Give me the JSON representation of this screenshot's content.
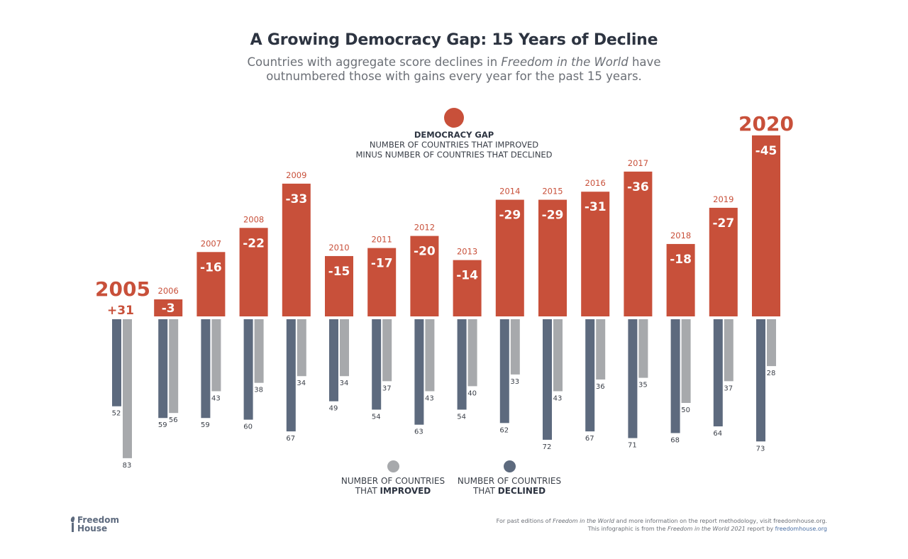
{
  "header": {
    "title": "A Growing Democracy Gap: 15 Years of Decline",
    "subtitle_pre": "Countries with aggregate score declines in ",
    "subtitle_italic": "Freedom in the World",
    "subtitle_post": " have",
    "subtitle_line2": "outnumbered those with gains every year for the past 15 years."
  },
  "gap_legend": {
    "title": "DEMOCRACY GAP",
    "line1": "NUMBER OF COUNTRIES THAT IMPROVED",
    "line2": "MINUS NUMBER OF COUNTRIES THAT DECLINED"
  },
  "legend": {
    "improved_line1": "NUMBER OF COUNTRIES",
    "improved_pre": "THAT ",
    "improved_bold": "IMPROVED",
    "declined_line1": "NUMBER OF COUNTRIES",
    "declined_pre": "THAT ",
    "declined_bold": "DECLINED"
  },
  "colors": {
    "gap": "#c8503a",
    "declined": "#5d6a7e",
    "improved": "#a7a9ac",
    "year_label": "#c8503a"
  },
  "logo": {
    "line1": "Freedom",
    "line2": "House"
  },
  "footer": {
    "l1_pre": "For past editions of ",
    "l1_italic": "Freedom in the World",
    "l1_post": " and more information on the report methodology, visit freedomhouse.org.",
    "l2_pre": "This infographic is from the ",
    "l2_italic": "Freedom in the World 2021",
    "l2_mid": " report by ",
    "l2_link": "freedomhouse.org"
  },
  "chart_data": {
    "type": "bar",
    "title": "A Growing Democracy Gap: 15 Years of Decline",
    "categories": [
      "2005",
      "2006",
      "2007",
      "2008",
      "2009",
      "2010",
      "2011",
      "2012",
      "2013",
      "2014",
      "2015",
      "2016",
      "2017",
      "2018",
      "2019",
      "2020"
    ],
    "highlight_years": [
      "2005",
      "2020"
    ],
    "series": [
      {
        "name": "Democracy Gap",
        "values": [
          31,
          -3,
          -16,
          -22,
          -33,
          -15,
          -17,
          -20,
          -14,
          -29,
          -29,
          -31,
          -36,
          -18,
          -27,
          -45
        ],
        "labels": [
          "+31",
          "-3",
          "-16",
          "-22",
          "-33",
          "-15",
          "-17",
          "-20",
          "-14",
          "-29",
          "-29",
          "-31",
          "-36",
          "-18",
          "-27",
          "-45"
        ]
      },
      {
        "name": "Number of countries that declined",
        "values": [
          52,
          59,
          59,
          60,
          67,
          49,
          54,
          63,
          54,
          62,
          72,
          67,
          71,
          68,
          64,
          73
        ]
      },
      {
        "name": "Number of countries that improved",
        "values": [
          83,
          56,
          43,
          38,
          34,
          34,
          37,
          43,
          40,
          33,
          43,
          36,
          35,
          50,
          37,
          28
        ]
      }
    ],
    "xlabel": "",
    "ylabel": "",
    "grid": false
  }
}
